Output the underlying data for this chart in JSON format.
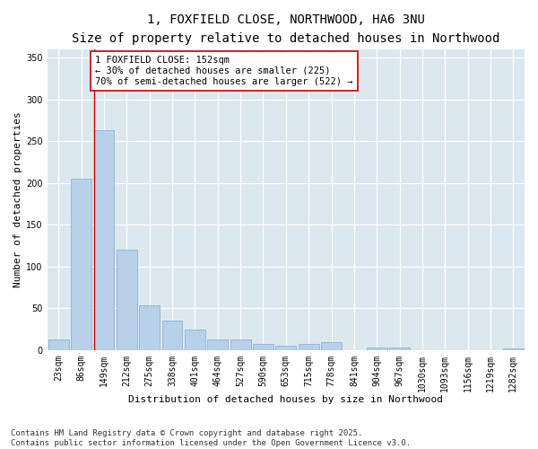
{
  "title_line1": "1, FOXFIELD CLOSE, NORTHWOOD, HA6 3NU",
  "title_line2": "Size of property relative to detached houses in Northwood",
  "xlabel": "Distribution of detached houses by size in Northwood",
  "ylabel": "Number of detached properties",
  "categories": [
    "23sqm",
    "86sqm",
    "149sqm",
    "212sqm",
    "275sqm",
    "338sqm",
    "401sqm",
    "464sqm",
    "527sqm",
    "590sqm",
    "653sqm",
    "715sqm",
    "778sqm",
    "841sqm",
    "904sqm",
    "967sqm",
    "1030sqm",
    "1093sqm",
    "1156sqm",
    "1219sqm",
    "1282sqm"
  ],
  "values": [
    13,
    205,
    263,
    120,
    54,
    35,
    25,
    13,
    13,
    7,
    5,
    7,
    10,
    0,
    3,
    3,
    0,
    0,
    0,
    0,
    2
  ],
  "bar_color": "#b8d0e8",
  "bar_edge_color": "#88aacc",
  "vline_color": "#cc0000",
  "vline_x_index": 2,
  "annotation_text": "1 FOXFIELD CLOSE: 152sqm\n← 30% of detached houses are smaller (225)\n70% of semi-detached houses are larger (522) →",
  "annotation_box_color": "#ffffff",
  "annotation_box_edge": "#cc0000",
  "ylim": [
    0,
    360
  ],
  "yticks": [
    0,
    50,
    100,
    150,
    200,
    250,
    300,
    350
  ],
  "fig_bg_color": "#ffffff",
  "plot_bg_color": "#dce8f0",
  "footer_line1": "Contains HM Land Registry data © Crown copyright and database right 2025.",
  "footer_line2": "Contains public sector information licensed under the Open Government Licence v3.0.",
  "title_fontsize": 10,
  "subtitle_fontsize": 9,
  "axis_label_fontsize": 8,
  "tick_fontsize": 7,
  "annotation_fontsize": 7.5,
  "footer_fontsize": 6.5
}
